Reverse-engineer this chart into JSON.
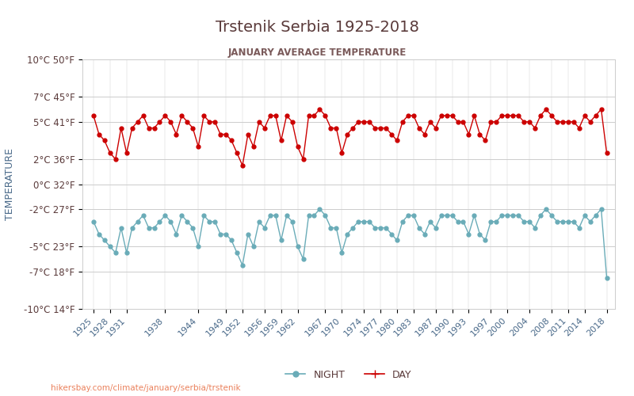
{
  "title": "Trstenik Serbia 1925-2018",
  "subtitle": "JANUARY AVERAGE TEMPERATURE",
  "ylabel": "TEMPERATURE",
  "watermark": "hikersbay.com/climate/january/serbia/trstenik",
  "title_color": "#5a3a3a",
  "subtitle_color": "#7a5a5a",
  "ylabel_color": "#4a6a8a",
  "background_color": "#ffffff",
  "plot_bg_color": "#ffffff",
  "day_color": "#cc0000",
  "night_color": "#6aacb8",
  "ylim": [
    -10,
    10
  ],
  "yticks_celsius": [
    10,
    7,
    5,
    2,
    0,
    -2,
    -5,
    -7,
    -10
  ],
  "yticks_fahrenheit": [
    50,
    45,
    41,
    36,
    32,
    27,
    23,
    18,
    14
  ],
  "years": [
    1925,
    1926,
    1927,
    1928,
    1929,
    1930,
    1931,
    1932,
    1933,
    1934,
    1935,
    1936,
    1937,
    1938,
    1939,
    1940,
    1941,
    1942,
    1943,
    1944,
    1945,
    1946,
    1947,
    1948,
    1949,
    1950,
    1951,
    1952,
    1953,
    1954,
    1955,
    1956,
    1957,
    1958,
    1959,
    1960,
    1961,
    1962,
    1963,
    1964,
    1965,
    1966,
    1967,
    1968,
    1969,
    1970,
    1971,
    1972,
    1973,
    1974,
    1975,
    1976,
    1977,
    1978,
    1979,
    1980,
    1981,
    1982,
    1983,
    1984,
    1985,
    1986,
    1987,
    1988,
    1989,
    1990,
    1991,
    1992,
    1993,
    1994,
    1995,
    1996,
    1997,
    1998,
    1999,
    2000,
    2001,
    2002,
    2003,
    2004,
    2005,
    2006,
    2007,
    2008,
    2009,
    2010,
    2011,
    2012,
    2013,
    2014,
    2015,
    2016,
    2017,
    2018
  ],
  "day_temps": [
    5.5,
    4.0,
    3.5,
    2.5,
    2.0,
    4.5,
    2.5,
    4.5,
    5.0,
    5.5,
    4.5,
    4.5,
    5.0,
    5.5,
    5.0,
    4.0,
    5.5,
    5.0,
    4.5,
    3.0,
    5.5,
    5.0,
    5.0,
    4.0,
    4.0,
    3.5,
    2.5,
    1.5,
    4.0,
    3.0,
    5.0,
    4.5,
    5.5,
    5.5,
    3.5,
    5.5,
    5.0,
    3.0,
    2.0,
    5.5,
    5.5,
    6.0,
    5.5,
    4.5,
    4.5,
    2.5,
    4.0,
    4.5,
    5.0,
    5.0,
    5.0,
    4.5,
    4.5,
    4.5,
    4.0,
    3.5,
    5.0,
    5.5,
    5.5,
    4.5,
    4.0,
    5.0,
    4.5,
    5.5,
    5.5,
    5.5,
    5.0,
    5.0,
    4.0,
    5.5,
    4.0,
    3.5,
    5.0,
    5.0,
    5.5,
    5.5,
    5.5,
    5.5,
    5.0,
    5.0,
    4.5,
    5.5,
    6.0,
    5.5,
    5.0,
    5.0,
    5.0,
    5.0,
    4.5,
    5.5,
    5.0,
    5.5,
    6.0,
    2.5
  ],
  "night_temps": [
    -3.0,
    -4.0,
    -4.5,
    -5.0,
    -5.5,
    -3.5,
    -5.5,
    -3.5,
    -3.0,
    -2.5,
    -3.5,
    -3.5,
    -3.0,
    -2.5,
    -3.0,
    -4.0,
    -2.5,
    -3.0,
    -3.5,
    -5.0,
    -2.5,
    -3.0,
    -3.0,
    -4.0,
    -4.0,
    -4.5,
    -5.5,
    -6.5,
    -4.0,
    -5.0,
    -3.0,
    -3.5,
    -2.5,
    -2.5,
    -4.5,
    -2.5,
    -3.0,
    -5.0,
    -6.0,
    -2.5,
    -2.5,
    -2.0,
    -2.5,
    -3.5,
    -3.5,
    -5.5,
    -4.0,
    -3.5,
    -3.0,
    -3.0,
    -3.0,
    -3.5,
    -3.5,
    -3.5,
    -4.0,
    -4.5,
    -3.0,
    -2.5,
    -2.5,
    -3.5,
    -4.0,
    -3.0,
    -3.5,
    -2.5,
    -2.5,
    -2.5,
    -3.0,
    -3.0,
    -4.0,
    -2.5,
    -4.0,
    -4.5,
    -3.0,
    -3.0,
    -2.5,
    -2.5,
    -2.5,
    -2.5,
    -3.0,
    -3.0,
    -3.5,
    -2.5,
    -2.0,
    -2.5,
    -3.0,
    -3.0,
    -3.0,
    -3.0,
    -3.5,
    -2.5,
    -3.0,
    -2.5,
    -2.0,
    -7.5
  ],
  "xtick_years": [
    1925,
    1928,
    1931,
    1938,
    1944,
    1949,
    1952,
    1956,
    1959,
    1962,
    1967,
    1970,
    1974,
    1977,
    1980,
    1983,
    1987,
    1990,
    1993,
    1997,
    2000,
    2004,
    2008,
    2011,
    2014,
    2018
  ]
}
